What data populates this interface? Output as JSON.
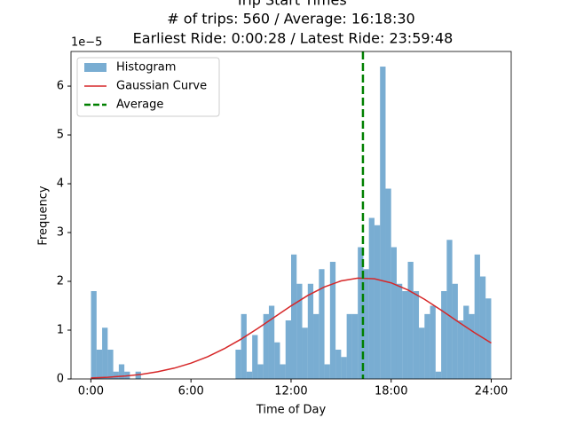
{
  "chart_data": {
    "type": "histogram",
    "title": [
      "Trip Start Times",
      "# of trips: 560 / Average: 16:18:30",
      "Earliest Ride: 0:00:28 / Latest Ride: 23:59:48"
    ],
    "xlabel": "Time of Day",
    "ylabel": "Frequency",
    "y_offset_label": "1e−5",
    "xlim": [
      -4290,
      90706
    ],
    "xticks": [
      {
        "value": 0,
        "label": "0:00"
      },
      {
        "value": 21600,
        "label": "6:00"
      },
      {
        "value": 43200,
        "label": "12:00"
      },
      {
        "value": 64800,
        "label": "18:00"
      },
      {
        "value": 86400,
        "label": "24:00"
      }
    ],
    "ylim": [
      0,
      6.71e-05
    ],
    "yticks": [
      0,
      {
        "value": 1e-05,
        "label": "1"
      },
      {
        "value": 2e-05,
        "label": "2"
      },
      {
        "value": 3e-05,
        "label": "3"
      },
      {
        "value": 4e-05,
        "label": "4"
      },
      {
        "value": 5e-05,
        "label": "5"
      },
      {
        "value": 6e-05,
        "label": "6"
      }
    ],
    "legend": "upper left",
    "series": [
      {
        "name": "Histogram",
        "type": "bar",
        "color": "#1f77b4",
        "opacity": 0.6,
        "bins": [
          28,
          1227,
          2427,
          3626,
          4826,
          6025,
          7225,
          8424,
          9624,
          10823,
          12022,
          13222,
          14421,
          15621,
          16820,
          18020,
          19219,
          20419,
          21618,
          22817,
          24017,
          25216,
          26416,
          27615,
          28815,
          30014,
          31214,
          32413,
          33612,
          34812,
          36011,
          37211,
          38410,
          39610,
          40809,
          42009,
          43208,
          44407,
          45607,
          46806,
          48006,
          49205,
          50405,
          51604,
          52804,
          54003,
          55202,
          56402,
          57601,
          58801,
          60000,
          61200,
          62399,
          63599,
          64798,
          65997,
          67197,
          68396,
          69596,
          70795,
          71995,
          73194,
          74394,
          75593,
          76792,
          77992,
          79191,
          80391,
          81590,
          82790,
          83989,
          85189,
          86388
        ],
        "values": [
          1.8e-05,
          6e-06,
          1.05e-05,
          6e-06,
          1.5e-06,
          3e-06,
          1.5e-06,
          0,
          1.5e-06,
          0,
          0,
          0,
          0,
          0,
          0,
          0,
          0,
          0,
          0,
          0,
          0,
          0,
          0,
          0,
          0,
          0,
          6e-06,
          1.33e-05,
          1.5e-06,
          9e-06,
          3e-06,
          1.33e-05,
          1.5e-05,
          7.5e-06,
          3e-06,
          1.2e-05,
          2.55e-05,
          1.95e-05,
          1.05e-05,
          1.95e-05,
          1.33e-05,
          2.25e-05,
          3e-06,
          2.4e-05,
          6e-06,
          4.5e-06,
          1.33e-05,
          1.33e-05,
          2.7e-05,
          2.25e-05,
          3.3e-05,
          3.15e-05,
          6.4e-05,
          3.9e-05,
          2.7e-05,
          1.95e-05,
          1.8e-05,
          2.4e-05,
          1.8e-05,
          1.05e-05,
          1.33e-05,
          1.5e-05,
          1.5e-06,
          1.8e-05,
          2.85e-05,
          1.95e-05,
          1.2e-05,
          1.5e-05,
          1.33e-05,
          2.55e-05,
          2.1e-05,
          1.65e-05
        ]
      },
      {
        "name": "Gaussian Curve",
        "type": "line",
        "color": "#d62728",
        "x": [
          0,
          3600,
          7200,
          10800,
          14400,
          18000,
          21600,
          25200,
          28800,
          32400,
          36000,
          39600,
          43200,
          46800,
          50400,
          54000,
          57600,
          61200,
          64800,
          68400,
          72000,
          75600,
          79200,
          82800,
          86400
        ],
        "values": [
          2e-07,
          3.5e-07,
          5.8e-07,
          9.4e-07,
          1.47e-06,
          2.22e-06,
          3.24e-06,
          4.56e-06,
          6.21e-06,
          8.15e-06,
          1.034e-05,
          1.266e-05,
          1.497e-05,
          1.71e-05,
          1.886e-05,
          2.009e-05,
          2.066e-05,
          2.053e-05,
          1.969e-05,
          1.824e-05,
          1.632e-05,
          1.41e-05,
          1.176e-05,
          9.48e-06,
          7.37e-06
        ]
      },
      {
        "name": "Average",
        "type": "vline",
        "color": "#008000",
        "x": 58710
      }
    ]
  }
}
